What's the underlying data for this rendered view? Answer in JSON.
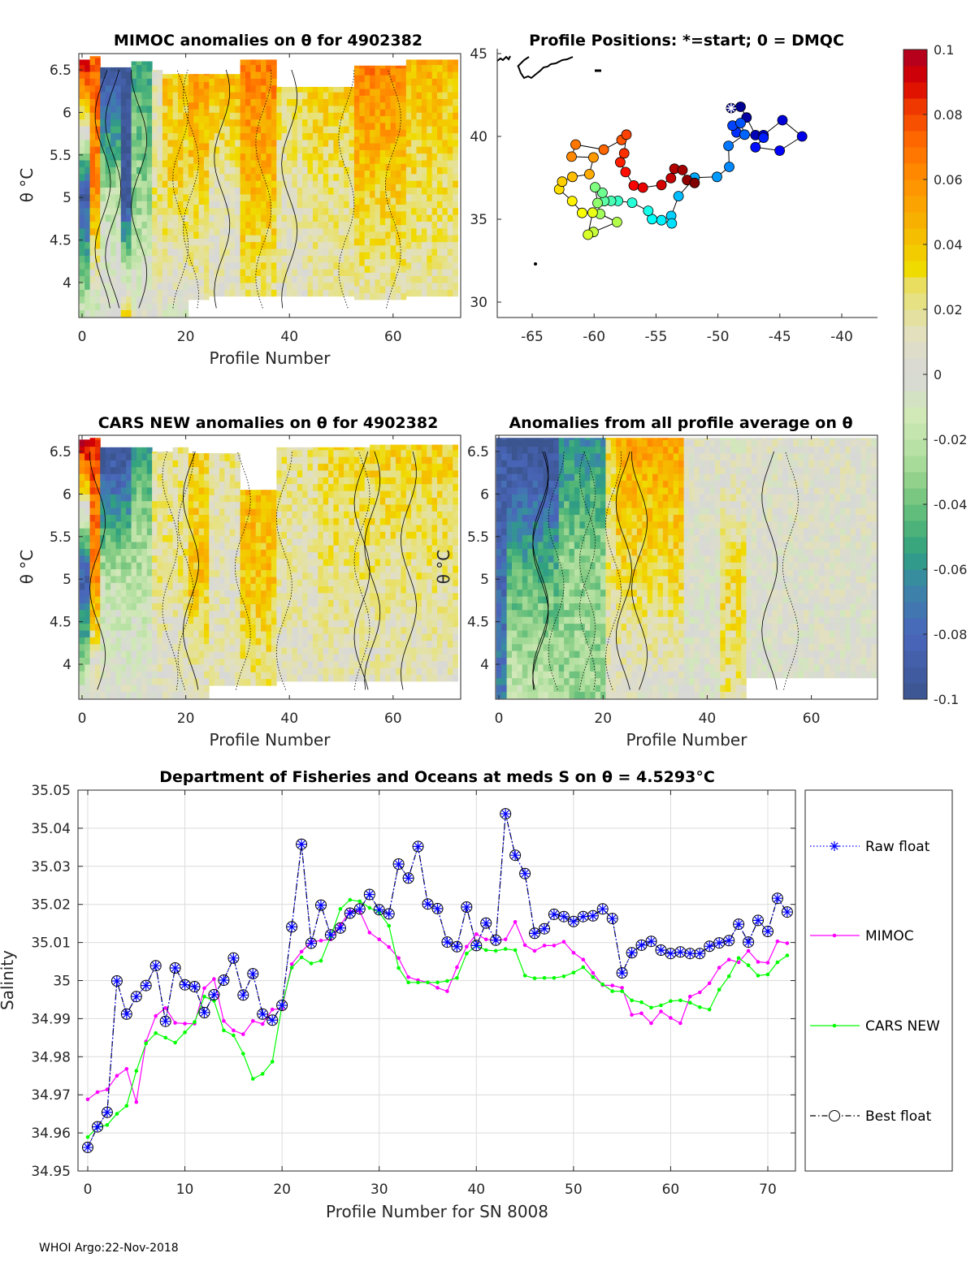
{
  "colors": {
    "mimoc": "#ff00ff",
    "cars": "#00ff00",
    "raw": "#0000ff",
    "best": "#000000",
    "grid": "#dcdcdc"
  },
  "colormap_stops": [
    [
      -0.1,
      "#3b5590"
    ],
    [
      -0.08,
      "#4a66bb"
    ],
    [
      -0.065,
      "#3a86a8"
    ],
    [
      -0.055,
      "#2fa080"
    ],
    [
      -0.045,
      "#55b878"
    ],
    [
      -0.035,
      "#86cc84"
    ],
    [
      -0.025,
      "#b2e0a0"
    ],
    [
      -0.012,
      "#d2e8b8"
    ],
    [
      0,
      "#d8d8d8"
    ],
    [
      0.012,
      "#e2e0c0"
    ],
    [
      0.022,
      "#e6e286"
    ],
    [
      0.028,
      "#eade5e"
    ],
    [
      0.032,
      "#f0dc00"
    ],
    [
      0.042,
      "#f5bf00"
    ],
    [
      0.052,
      "#fba400"
    ],
    [
      0.062,
      "#ff8a00"
    ],
    [
      0.072,
      "#ff6800"
    ],
    [
      0.082,
      "#f03c00"
    ],
    [
      0.09,
      "#d80000"
    ],
    [
      0.1,
      "#ac0024"
    ]
  ],
  "chart_data": [
    {
      "id": "mimoc-anomaly",
      "type": "heatmap",
      "title": "MIMOC anomalies on θ  for 4902382",
      "xlabel": "Profile Number",
      "ylabel": "θ °C",
      "xlim": [
        -0.6,
        72.4
      ],
      "ylim": [
        3.59,
        6.69
      ],
      "xticks": [
        "0",
        "20",
        "40",
        "60"
      ],
      "yticks": [
        "6.5",
        "6",
        "5.5",
        "5",
        "4.5",
        "4"
      ],
      "segments_note": "profile_from, profile_to, theta_top, theta_bottom, anomaly_at_6.5, anomaly_at_5.0, anomaly_at_3.7",
      "segments": [
        [
          0,
          1,
          6.62,
          3.6,
          0.09,
          -0.09,
          -0.02
        ],
        [
          2,
          3,
          6.66,
          3.6,
          0.07,
          0.06,
          -0.01
        ],
        [
          4,
          7,
          6.53,
          3.6,
          -0.1,
          -0.02,
          0.0
        ],
        [
          8,
          9,
          6.53,
          3.6,
          -0.1,
          -0.1,
          0.02
        ],
        [
          10,
          13,
          6.6,
          3.6,
          -0.05,
          -0.03,
          0.0
        ],
        [
          14,
          15,
          6.5,
          3.6,
          0.01,
          0.02,
          0.01
        ],
        [
          16,
          20,
          6.45,
          3.6,
          0.04,
          0.03,
          0.0
        ],
        [
          21,
          24,
          6.45,
          3.8,
          0.06,
          0.03,
          0.01
        ],
        [
          25,
          30,
          6.45,
          3.84,
          0.05,
          0.01,
          0.01
        ],
        [
          31,
          37,
          6.62,
          3.84,
          0.065,
          0.04,
          0.02
        ],
        [
          38,
          43,
          6.3,
          3.84,
          0.03,
          0.015,
          0.01
        ],
        [
          44,
          52,
          6.3,
          3.84,
          0.04,
          0.02,
          0.015
        ],
        [
          53,
          62,
          6.55,
          3.8,
          0.065,
          0.035,
          0.015
        ],
        [
          63,
          72,
          6.62,
          3.84,
          0.045,
          0.025,
          0.015
        ]
      ]
    },
    {
      "id": "profile-positions",
      "type": "scatter",
      "title": "Profile Positions: *=start; 0 = DMQC",
      "xlim": [
        -68,
        -37
      ],
      "ylim": [
        29.7,
        45.9
      ],
      "xticks": [
        "-65",
        "-60",
        "-55",
        "-50",
        "-45",
        "-40"
      ],
      "yticks": [
        "45",
        "40",
        "35",
        "30"
      ],
      "points_lon_lat": [
        [
          -48.93,
          41.71
        ],
        [
          -48.17,
          41.79
        ],
        [
          -47.69,
          41.14
        ],
        [
          -46.97,
          40.08
        ],
        [
          -46.32,
          40.08
        ],
        [
          -44.79,
          40.98
        ],
        [
          -43.2,
          40.0
        ],
        [
          -45.01,
          39.14
        ],
        [
          -46.97,
          39.35
        ],
        [
          -46.32,
          39.92
        ],
        [
          -48.5,
          40.24
        ],
        [
          -48.82,
          40.65
        ],
        [
          -48.17,
          40.81
        ],
        [
          -47.84,
          40.11
        ],
        [
          -49.15,
          39.43
        ],
        [
          -49.09,
          38.16
        ],
        [
          -50.07,
          37.56
        ],
        [
          -51.88,
          37.51
        ],
        [
          -53.18,
          36.39
        ],
        [
          -53.77,
          35.2
        ],
        [
          -53.73,
          34.75
        ],
        [
          -54.56,
          34.94
        ],
        [
          -55.32,
          35.01
        ],
        [
          -55.63,
          35.51
        ],
        [
          -56.93,
          36.0
        ],
        [
          -58.07,
          36.11
        ],
        [
          -58.63,
          36.11
        ],
        [
          -59.18,
          36.1
        ],
        [
          -59.33,
          36.6
        ],
        [
          -59.92,
          36.93
        ],
        [
          -59.72,
          35.98
        ],
        [
          -59.51,
          35.32
        ],
        [
          -58.15,
          34.83
        ],
        [
          -60.05,
          34.23
        ],
        [
          -60.49,
          34.07
        ],
        [
          -60.12,
          35.4
        ],
        [
          -60.97,
          35.38
        ],
        [
          -61.77,
          36.1
        ],
        [
          -62.82,
          36.81
        ],
        [
          -62.58,
          37.27
        ],
        [
          -61.75,
          37.56
        ],
        [
          -60.38,
          37.72
        ],
        [
          -60.05,
          38.73
        ],
        [
          -61.82,
          38.78
        ],
        [
          -61.49,
          39.51
        ],
        [
          -59.22,
          39.2
        ],
        [
          -57.78,
          39.79
        ],
        [
          -57.39,
          40.11
        ],
        [
          -57.57,
          38.98
        ],
        [
          -57.89,
          38.44
        ],
        [
          -57.46,
          37.85
        ],
        [
          -56.8,
          37.04
        ],
        [
          -56.06,
          36.91
        ],
        [
          -54.56,
          37.07
        ],
        [
          -53.79,
          37.48
        ],
        [
          -53.51,
          38.05
        ],
        [
          -52.86,
          37.97
        ],
        [
          -52.49,
          37.37
        ],
        [
          -51.88,
          37.19
        ]
      ]
    },
    {
      "id": "cars-anomaly",
      "type": "heatmap",
      "title": "CARS NEW anomalies on θ for 4902382",
      "xlabel": "Profile Number",
      "ylabel": "θ °C",
      "xlim": [
        -0.6,
        72.4
      ],
      "ylim": [
        3.59,
        6.69
      ],
      "xticks": [
        "0",
        "20",
        "40",
        "60"
      ],
      "yticks": [
        "6.5",
        "6",
        "5.5",
        "5",
        "4.5",
        "4"
      ],
      "segments": [
        [
          0,
          1,
          6.64,
          3.6,
          0.09,
          -0.09,
          -0.01
        ],
        [
          2,
          3,
          6.66,
          3.6,
          0.08,
          0.06,
          0.0
        ],
        [
          4,
          9,
          6.55,
          3.6,
          -0.1,
          -0.02,
          0.0
        ],
        [
          10,
          13,
          6.55,
          3.6,
          -0.05,
          -0.02,
          0.0
        ],
        [
          14,
          17,
          6.5,
          3.6,
          0.02,
          0.02,
          0.005
        ],
        [
          18,
          20,
          6.55,
          3.6,
          0.02,
          0.02,
          0.005
        ],
        [
          21,
          24,
          6.48,
          3.6,
          0.03,
          0.04,
          0.01
        ],
        [
          25,
          30,
          6.48,
          3.75,
          0.02,
          0.01,
          0.01
        ],
        [
          31,
          37,
          6.05,
          3.75,
          0.045,
          0.04,
          0.02
        ],
        [
          38,
          45,
          6.55,
          3.8,
          0.02,
          0.015,
          0.01
        ],
        [
          46,
          55,
          6.55,
          3.8,
          0.03,
          0.02,
          0.01
        ],
        [
          56,
          72,
          6.58,
          3.8,
          0.035,
          0.02,
          0.01
        ]
      ]
    },
    {
      "id": "all-profile-anomaly",
      "type": "heatmap",
      "title": "Anomalies from all profile average on θ",
      "xlabel": "Profile Number",
      "ylabel": "θ °C",
      "xlim": [
        -0.6,
        72.5
      ],
      "ylim": [
        3.59,
        6.69
      ],
      "xticks": [
        "0",
        "20",
        "40",
        "60"
      ],
      "yticks": [
        "6.5",
        "6",
        "5.5",
        "5",
        "4.5",
        "4"
      ],
      "segments": [
        [
          0,
          1,
          6.66,
          3.6,
          -0.09,
          -0.08,
          -0.07
        ],
        [
          2,
          11,
          6.66,
          3.6,
          -0.1,
          -0.045,
          -0.02
        ],
        [
          12,
          20,
          6.66,
          3.6,
          -0.06,
          -0.03,
          -0.03
        ],
        [
          21,
          22,
          6.66,
          3.6,
          0.03,
          0.02,
          0.005
        ],
        [
          23,
          35,
          6.66,
          3.6,
          0.05,
          0.03,
          0.005
        ],
        [
          36,
          42,
          6.66,
          3.6,
          0.005,
          0.0,
          0.0
        ],
        [
          43,
          47,
          6.66,
          3.6,
          0.0,
          0.03,
          0.02
        ],
        [
          48,
          72,
          6.66,
          3.84,
          0.004,
          0.002,
          0.0
        ]
      ]
    },
    {
      "id": "colorbar",
      "type": "colorbar",
      "range": [
        -0.1,
        0.1
      ],
      "ticks": [
        "0.1",
        "0.08",
        "0.06",
        "0.04",
        "0.02",
        "0",
        "-0.02",
        "-0.04",
        "-0.06",
        "-0.08",
        "-0.1"
      ]
    },
    {
      "id": "salinity",
      "type": "line",
      "title": "Department of Fisheries and Oceans at meds S on θ = 4.5293°C",
      "xlabel": "Profile Number for SN 8008",
      "ylabel": "Salinity",
      "xlim": [
        -1,
        73
      ],
      "ylim": [
        34.95,
        35.05
      ],
      "grid": true,
      "legend_position": "outside-right",
      "xticks": [
        "0",
        "10",
        "20",
        "30",
        "40",
        "50",
        "60",
        "70"
      ],
      "yticks": [
        "35.05",
        "35.04",
        "35.03",
        "35.02",
        "35.01",
        "35",
        "34.99",
        "34.98",
        "34.97",
        "34.96",
        "34.95"
      ],
      "series": [
        {
          "name": "Raw float",
          "values": [
            34.9562,
            34.9616,
            34.9654,
            34.9999,
            34.9912,
            34.9958,
            34.9987,
            35.0039,
            34.9893,
            35.0033,
            34.9989,
            34.9984,
            34.9916,
            34.9963,
            35.0001,
            35.0059,
            34.9962,
            35.0018,
            34.9912,
            34.9896,
            34.9935,
            35.0141,
            35.0358,
            35.0098,
            35.0198,
            35.012,
            35.0138,
            35.0177,
            35.0188,
            35.0226,
            35.0186,
            35.0175,
            35.0306,
            35.0269,
            35.0352,
            35.0201,
            35.0189,
            35.0101,
            35.0089,
            35.0193,
            35.0092,
            35.0151,
            35.0106,
            35.0438,
            35.0329,
            35.0281,
            35.0124,
            35.0136,
            35.0174,
            35.0168,
            35.0155,
            35.0168,
            35.017,
            35.0188,
            35.0163,
            35.002,
            35.0073,
            35.0093,
            35.0103,
            35.008,
            35.0071,
            35.0075,
            35.0071,
            35.0071,
            35.009,
            35.0099,
            35.0105,
            35.0148,
            35.0101,
            35.0158,
            35.0129,
            35.0216,
            35.018
          ]
        },
        {
          "name": "MIMOC",
          "values": [
            34.9688,
            34.9707,
            34.9714,
            34.975,
            34.9768,
            34.9681,
            34.984,
            34.9907,
            34.9928,
            34.9889,
            34.9887,
            34.9887,
            34.998,
            35.0004,
            34.9894,
            34.9869,
            34.9859,
            34.9894,
            34.9886,
            34.9924,
            34.9926,
            35.0043,
            35.0076,
            35.0102,
            35.0105,
            35.0108,
            35.0146,
            35.0182,
            35.0182,
            35.0126,
            35.0108,
            35.0088,
            35.0059,
            35.0009,
            35.0001,
            34.9995,
            34.9981,
            34.9972,
            35.0035,
            35.0089,
            35.0122,
            35.0108,
            35.0106,
            35.0108,
            35.0154,
            35.0093,
            35.0078,
            35.0092,
            35.0092,
            35.0102,
            35.0073,
            35.0055,
            35.002,
            34.9988,
            34.9987,
            34.9981,
            34.991,
            34.9914,
            34.9888,
            34.9919,
            34.9902,
            34.9888,
            34.9958,
            34.9969,
            34.9993,
            35.0034,
            35.0055,
            35.0048,
            35.0078,
            35.0049,
            35.0047,
            35.0103,
            35.0098
          ]
        },
        {
          "name": "CARS NEW",
          "values": [
            34.9589,
            34.9615,
            34.9621,
            34.965,
            34.9671,
            34.9763,
            34.9835,
            34.9862,
            34.985,
            34.9837,
            34.9864,
            34.9891,
            34.9958,
            34.9947,
            34.9869,
            34.9856,
            34.9808,
            34.9742,
            34.9755,
            34.9787,
            34.9935,
            35.0034,
            35.0061,
            35.0045,
            35.0052,
            35.0115,
            35.0188,
            35.0212,
            35.0208,
            35.0191,
            35.0179,
            35.0144,
            35.0033,
            34.9995,
            34.9995,
            34.9995,
            34.9995,
            34.9999,
            35.0007,
            35.0071,
            35.0092,
            35.008,
            35.0078,
            35.0083,
            35.008,
            35.0013,
            35.0006,
            35.0007,
            35.0007,
            35.0011,
            35.0021,
            35.0035,
            35.0009,
            34.999,
            34.9972,
            34.9972,
            34.9948,
            34.9943,
            34.9929,
            34.9935,
            34.9946,
            34.9948,
            34.9942,
            34.993,
            34.9924,
            34.9976,
            35.0011,
            35.0059,
            35.004,
            35.0013,
            35.0016,
            35.0048,
            35.0066
          ]
        },
        {
          "name": "Best float",
          "values": [
            34.9562,
            34.9616,
            34.9654,
            34.9999,
            34.9912,
            34.9958,
            34.9987,
            35.0039,
            34.9893,
            35.0033,
            34.9989,
            34.9984,
            34.9916,
            34.9963,
            35.0001,
            35.0059,
            34.9962,
            35.0018,
            34.9912,
            34.9896,
            34.9935,
            35.0141,
            35.0358,
            35.0098,
            35.0198,
            35.012,
            35.0138,
            35.0177,
            35.0188,
            35.0226,
            35.0186,
            35.0175,
            35.0306,
            35.0269,
            35.0352,
            35.0201,
            35.0189,
            35.0101,
            35.0089,
            35.0193,
            35.0092,
            35.0151,
            35.0106,
            35.0438,
            35.0329,
            35.0281,
            35.0124,
            35.0136,
            35.0174,
            35.0168,
            35.0155,
            35.0168,
            35.017,
            35.0188,
            35.0163,
            35.002,
            35.0073,
            35.0093,
            35.0103,
            35.008,
            35.0071,
            35.0075,
            35.0071,
            35.0071,
            35.009,
            35.0099,
            35.0105,
            35.0148,
            35.0101,
            35.0158,
            35.0129,
            35.0216,
            35.018
          ]
        }
      ]
    }
  ],
  "footer": "WHOI Argo:22-Nov-2018"
}
